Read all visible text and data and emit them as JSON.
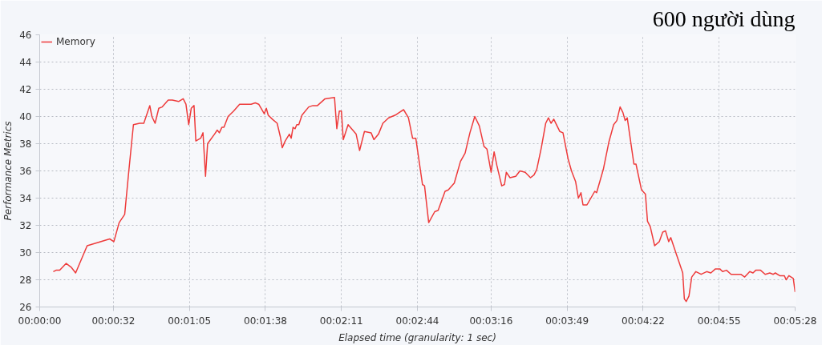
{
  "chart_data": {
    "type": "line",
    "title": "600 người dùng",
    "xlabel": "Elapsed time (granularity: 1 sec)",
    "ylabel": "Performance Metrics",
    "xlim": [
      0,
      328
    ],
    "ylim": [
      26,
      46
    ],
    "xticks": [
      {
        "value": 0,
        "label": "00:00:00"
      },
      {
        "value": 32,
        "label": "00:00:32"
      },
      {
        "value": 65,
        "label": "00:01:05"
      },
      {
        "value": 98,
        "label": "00:01:38"
      },
      {
        "value": 131,
        "label": "00:02:11"
      },
      {
        "value": 164,
        "label": "00:02:44"
      },
      {
        "value": 196,
        "label": "00:03:16"
      },
      {
        "value": 229,
        "label": "00:03:49"
      },
      {
        "value": 262,
        "label": "00:04:22"
      },
      {
        "value": 295,
        "label": "00:04:55"
      },
      {
        "value": 328,
        "label": "00:05:28"
      }
    ],
    "yticks": [
      26,
      28,
      30,
      32,
      34,
      36,
      38,
      40,
      42,
      44,
      46
    ],
    "grid": true,
    "legend": "top left",
    "series": [
      {
        "name": "Memory",
        "color": "#ee3b3b",
        "x": [
          5.9,
          7.1,
          8.7,
          11.5,
          13.8,
          15.6,
          20.6,
          30.4,
          32.2,
          34.5,
          36.9,
          38.7,
          40.7,
          43.4,
          45.2,
          47.8,
          48.7,
          50.1,
          51.7,
          53.2,
          55.8,
          57.6,
          60.3,
          62.3,
          63.5,
          64.7,
          65.8,
          67.0,
          67.8,
          69.9,
          70.9,
          72.0,
          72.9,
          75.9,
          77.1,
          78.0,
          79.1,
          80.0,
          81.8,
          84.2,
          86.8,
          91.8,
          93.6,
          95.1,
          97.5,
          98.4,
          99.2,
          101.0,
          103.1,
          104.5,
          105.3,
          106.6,
          108.4,
          109.2,
          110.0,
          110.9,
          111.6,
          112.5,
          113.9,
          116.8,
          118.6,
          120.6,
          123.9,
          128.0,
          129.0,
          130.1,
          131.0,
          131.8,
          133.9,
          137.4,
          138.9,
          141.0,
          143.9,
          145.1,
          147.1,
          149.0,
          151.5,
          154.4,
          156.2,
          158.0,
          160.1,
          161.9,
          163.3,
          166.2,
          167.1,
          168.9,
          171.5,
          173.0,
          176.0,
          177.4,
          180.0,
          182.7,
          184.7,
          186.8,
          188.9,
          190.9,
          192.9,
          194.2,
          196.0,
          197.3,
          198.5,
          200.6,
          201.8,
          202.6,
          204.2,
          206.7,
          208.5,
          210.8,
          213.1,
          214.6,
          215.8,
          217.8,
          219.7,
          220.9,
          222.0,
          223.2,
          225.8,
          227.2,
          229.4,
          230.9,
          232.7,
          233.9,
          235.0,
          235.9,
          237.6,
          241.0,
          241.8,
          244.7,
          247.1,
          249.2,
          250.6,
          252.0,
          253.2,
          254.2,
          255.1,
          258.0,
          258.9,
          261.3,
          263.0,
          263.9,
          265.1,
          267.0,
          269.0,
          270.5,
          271.7,
          273.1,
          274.0,
          276.6,
          279.2,
          279.9,
          280.7,
          281.9,
          283.1,
          284.9,
          287.2,
          289.6,
          291.4,
          293.4,
          295.3,
          296.5,
          298.2,
          300.2,
          302.6,
          304.4,
          306.1,
          308.3,
          309.7,
          310.9,
          313.0,
          315.0,
          317.0,
          318.5,
          319.4,
          321.3,
          323.3,
          324.1,
          325.3,
          327.2,
          328.0
        ],
        "values": [
          28.6,
          28.7,
          28.7,
          29.2,
          28.9,
          28.5,
          30.5,
          31.0,
          30.8,
          32.2,
          32.8,
          36.0,
          39.4,
          39.5,
          39.5,
          40.8,
          40.0,
          39.5,
          40.6,
          40.7,
          41.2,
          41.2,
          41.1,
          41.3,
          40.9,
          39.4,
          40.6,
          40.8,
          38.2,
          38.4,
          38.8,
          35.6,
          38.0,
          38.7,
          39.0,
          38.8,
          39.2,
          39.2,
          40.0,
          40.4,
          40.9,
          40.9,
          41.0,
          40.9,
          40.2,
          40.6,
          40.1,
          39.8,
          39.5,
          38.5,
          37.7,
          38.2,
          38.7,
          38.4,
          39.2,
          39.1,
          39.4,
          39.4,
          40.1,
          40.7,
          40.8,
          40.8,
          41.3,
          41.4,
          39.1,
          40.4,
          40.4,
          38.3,
          39.4,
          38.7,
          37.5,
          38.9,
          38.8,
          38.3,
          38.7,
          39.5,
          39.9,
          40.1,
          40.3,
          40.5,
          39.9,
          38.4,
          38.4,
          35.0,
          34.9,
          32.2,
          33.0,
          33.1,
          34.5,
          34.6,
          35.1,
          36.7,
          37.3,
          38.8,
          40.0,
          39.3,
          37.8,
          37.6,
          35.9,
          37.4,
          36.4,
          34.9,
          35.0,
          35.9,
          35.5,
          35.6,
          36.0,
          35.9,
          35.5,
          35.7,
          36.1,
          37.7,
          39.5,
          39.9,
          39.5,
          39.8,
          38.9,
          38.8,
          36.9,
          36.0,
          35.2,
          34.0,
          34.4,
          33.5,
          33.5,
          34.5,
          34.4,
          36.1,
          38.1,
          39.4,
          39.7,
          40.7,
          40.3,
          39.7,
          39.9,
          36.5,
          36.5,
          34.6,
          34.3,
          32.3,
          31.9,
          30.5,
          30.8,
          31.5,
          31.6,
          30.8,
          31.1,
          29.8,
          28.5,
          26.6,
          26.4,
          26.8,
          28.2,
          28.6,
          28.4,
          28.6,
          28.5,
          28.8,
          28.8,
          28.6,
          28.7,
          28.4,
          28.4,
          28.4,
          28.2,
          28.6,
          28.5,
          28.7,
          28.7,
          28.4,
          28.5,
          28.4,
          28.5,
          28.3,
          28.3,
          28.0,
          28.3,
          28.1,
          27.1
        ]
      }
    ]
  }
}
